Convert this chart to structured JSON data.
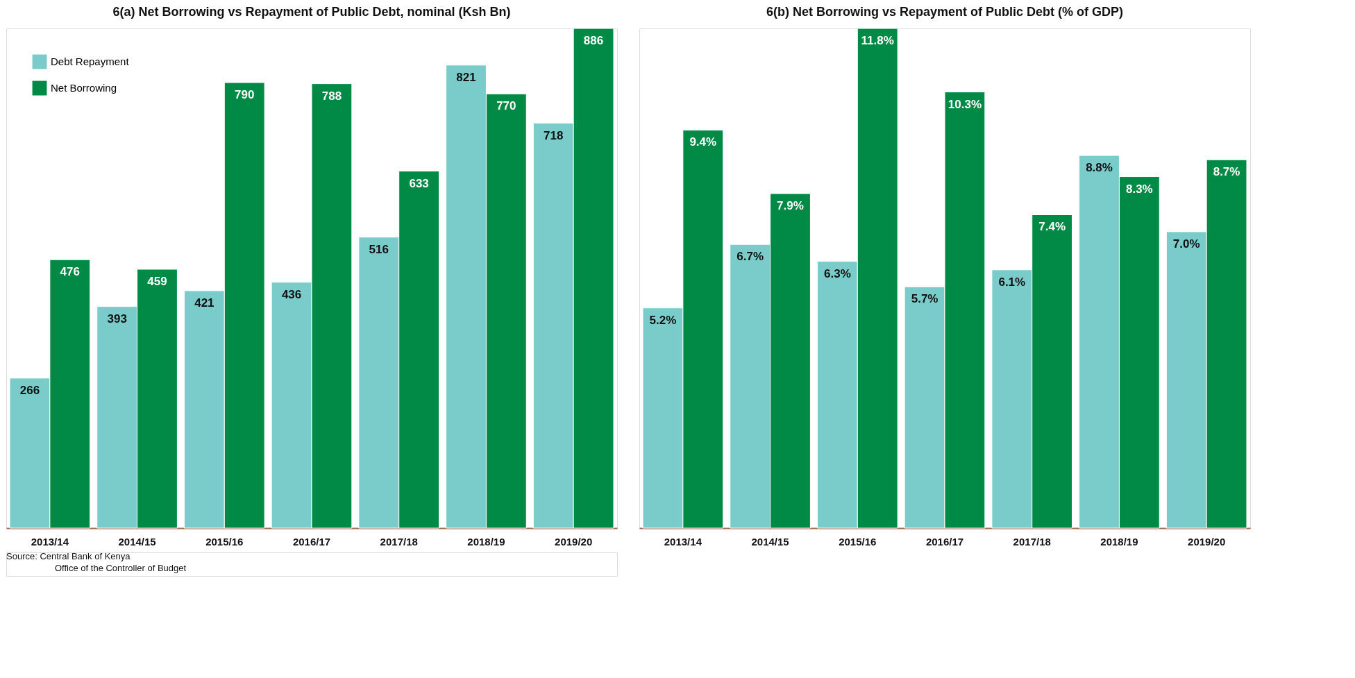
{
  "chart_data": [
    {
      "type": "bar",
      "title": "6(a) Net Borrowing vs Repayment of Public Debt, nominal (Ksh Bn)",
      "categories": [
        "2013/14",
        "2014/15",
        "2015/16",
        "2016/17",
        "2017/18",
        "2018/19",
        "2019/20"
      ],
      "series": [
        {
          "name": "Debt Repayment",
          "color": "#7accca",
          "values": [
            266,
            393,
            421,
            436,
            516,
            821,
            718
          ]
        },
        {
          "name": "Net Borrowing",
          "color": "#008a45",
          "values": [
            476,
            459,
            790,
            788,
            633,
            770,
            886
          ]
        }
      ],
      "data_labels": true,
      "legend": "top left",
      "grid": false,
      "annotations": [
        "Source: Central Bank of Kenya",
        "Office of the Controller of Budget"
      ]
    },
    {
      "type": "bar",
      "title": "6(b) Net Borrowing vs Repayment of Public Debt (% of GDP)",
      "categories": [
        "2013/14",
        "2014/15",
        "2015/16",
        "2016/17",
        "2017/18",
        "2018/19",
        "2019/20"
      ],
      "series": [
        {
          "name": "Debt Repayment",
          "color": "#7accca",
          "values": [
            5.2,
            6.7,
            6.3,
            5.7,
            6.1,
            8.8,
            7.0
          ],
          "value_labels": [
            "5.2%",
            "6.7%",
            "6.3%",
            "5.7%",
            "6.1%",
            "8.8%",
            "7.0%"
          ]
        },
        {
          "name": "Net Borrowing",
          "color": "#008a45",
          "values": [
            9.4,
            7.9,
            11.8,
            10.3,
            7.4,
            8.3,
            8.7
          ],
          "value_labels": [
            "9.4%",
            "7.9%",
            "11.8%",
            "10.3%",
            "7.4%",
            "8.3%",
            "8.7%"
          ]
        }
      ],
      "legend": false,
      "grid": false
    }
  ]
}
